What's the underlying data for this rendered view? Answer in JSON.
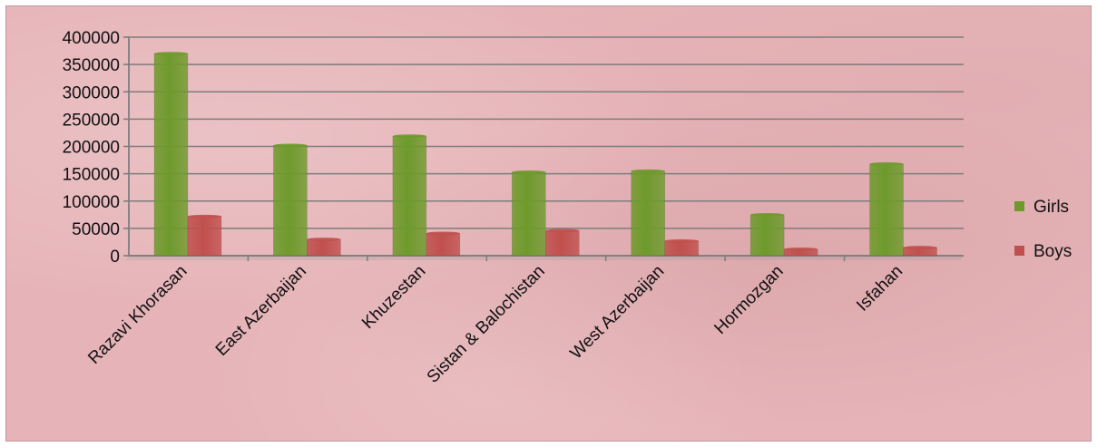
{
  "chart_data": {
    "type": "bar",
    "categories": [
      "Razavi Khorasan",
      "East Azerbaijan",
      "Khuzestan",
      "Sistan & Balochistan",
      "West Azerbaijan",
      "Hormozgan",
      "Isfahan"
    ],
    "series": [
      {
        "name": "Girls",
        "color": "#6e9a2c",
        "values": [
          370000,
          202000,
          219000,
          153000,
          155000,
          75000,
          168000
        ]
      },
      {
        "name": "Boys",
        "color": "#c0504d",
        "values": [
          72000,
          30000,
          41000,
          46000,
          27000,
          12000,
          15000
        ]
      }
    ],
    "ylim": [
      0,
      400000
    ],
    "yticks": [
      0,
      50000,
      100000,
      150000,
      200000,
      250000,
      300000,
      350000,
      400000
    ],
    "ytick_labels": [
      "0",
      "50000",
      "100000",
      "150000",
      "200000",
      "250000",
      "300000",
      "350000",
      "400000"
    ],
    "grid": true,
    "legend_position": "right",
    "title": "",
    "xlabel": "",
    "ylabel": ""
  }
}
